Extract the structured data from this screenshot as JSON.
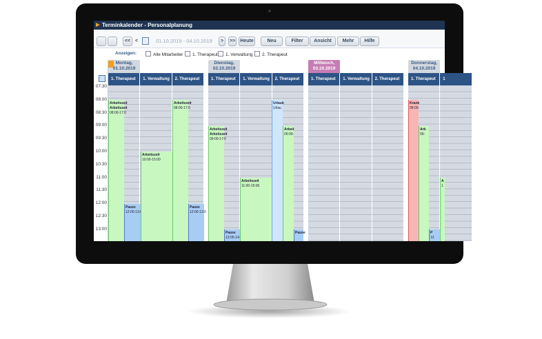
{
  "title": "Terminkalender - Personalplanung",
  "toolbar": {
    "prev2": "<<",
    "prev": "<",
    "date_range": "01.10.2019 - 04.10.2019",
    "next": ">",
    "next2": ">>",
    "today": "Heute",
    "new": "Neu",
    "filter": "Filter",
    "view": "Ansicht",
    "more": "Mehr",
    "help": "Hilfe"
  },
  "filter": {
    "label": "Anzeigen:",
    "options": [
      "Alle Mitarbeiter",
      "1. Therapeut",
      "1. Verwaltung",
      "2. Therapeut"
    ]
  },
  "times": [
    "07:30",
    "08:00",
    "08:30",
    "09:00",
    "09:30",
    "10:00",
    "10:30",
    "11:00",
    "11:30",
    "12:00",
    "12:30",
    "13:00"
  ],
  "days": [
    {
      "name": "Montag,",
      "date": "01.10.2019",
      "columns": [
        "1. Therapeut",
        "1. Verwaltung",
        "2. Therapeut"
      ]
    },
    {
      "name": "Dienstag,",
      "date": "02.10.2019",
      "columns": [
        "1. Therapeut",
        "1. Verwaltung",
        "2. Therapeut"
      ]
    },
    {
      "name": "Mittwoch,",
      "date": "03.10.2019",
      "columns": [
        "1. Therapeut",
        "1. Verwaltung",
        "2. Therapeut"
      ]
    },
    {
      "name": "Donnerstag,",
      "date": "04.10.2019",
      "columns": [
        "1. Therapeut",
        "1"
      ]
    }
  ],
  "events": [
    {
      "lines": [
        "Arbeitszeit",
        "Arbeitszeit",
        "08:00-17:0"
      ]
    },
    {
      "lines": [
        "Pause",
        "12:00-13:0"
      ]
    },
    {
      "lines": [
        "Arbeitszeit",
        "10:00-15:00"
      ]
    },
    {
      "lines": [
        "Arbeitszeit",
        "08:00-17:0"
      ]
    },
    {
      "lines": [
        "Pause",
        "12:00-13:0"
      ]
    },
    {
      "lines": [
        "Arbeitszeit",
        "Arbeitszeit",
        "09:00-17:0"
      ]
    },
    {
      "lines": [
        "Pause",
        "13:00-14:0"
      ]
    },
    {
      "lines": [
        "Arbeitszeit",
        "11:00-15:00"
      ]
    },
    {
      "lines": [
        "Urlaub",
        "Urlau"
      ]
    },
    {
      "lines": [
        "Arbeit",
        "09:00-"
      ]
    },
    {
      "lines": [
        "Pause"
      ]
    },
    {
      "lines": [
        "Krank",
        "08:00-"
      ]
    },
    {
      "lines": [
        "Arb",
        "09:"
      ]
    },
    {
      "lines": [
        "P",
        "13"
      ]
    },
    {
      "lines": [
        "A",
        "1"
      ]
    }
  ]
}
